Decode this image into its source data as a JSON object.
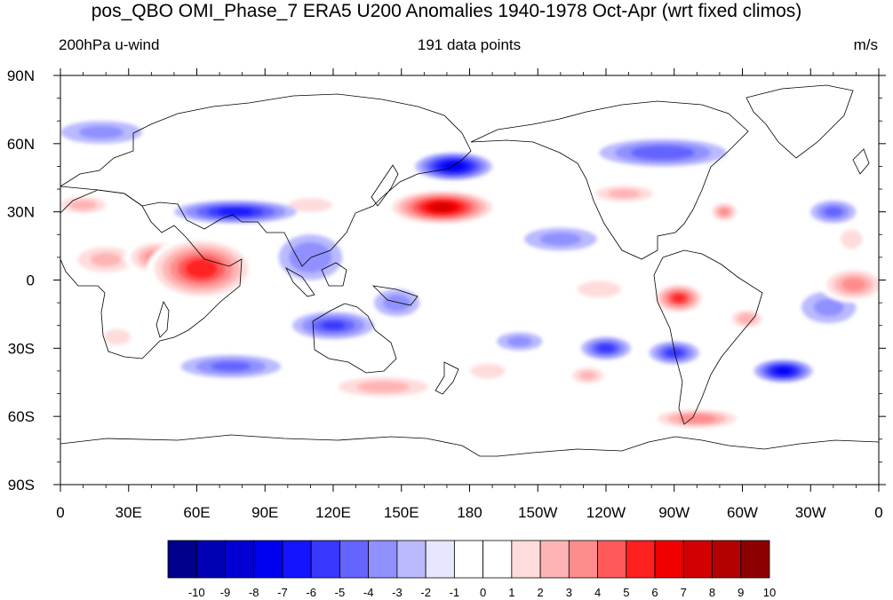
{
  "title": "pos_QBO OMI_Phase_7 ERA5 U200 Anomalies 1940-1978 Oct-Apr (wrt fixed climos)",
  "left_subtitle": "200hPa u-wind",
  "center_subtitle": "191 data points",
  "right_subtitle": "m/s",
  "chart_data": {
    "type": "heatmap",
    "projection": "cylindrical-equidistant",
    "lon_range": [
      0,
      360
    ],
    "lat_range": [
      -90,
      90
    ],
    "x_ticks": [
      {
        "lon": 0,
        "label": "0"
      },
      {
        "lon": 30,
        "label": "30E"
      },
      {
        "lon": 60,
        "label": "60E"
      },
      {
        "lon": 90,
        "label": "90E"
      },
      {
        "lon": 120,
        "label": "120E"
      },
      {
        "lon": 150,
        "label": "150E"
      },
      {
        "lon": 180,
        "label": "180"
      },
      {
        "lon": 210,
        "label": "150W"
      },
      {
        "lon": 240,
        "label": "120W"
      },
      {
        "lon": 270,
        "label": "90W"
      },
      {
        "lon": 300,
        "label": "60W"
      },
      {
        "lon": 330,
        "label": "30W"
      },
      {
        "lon": 360,
        "label": "0"
      }
    ],
    "y_ticks": [
      {
        "lat": 90,
        "label": "90N"
      },
      {
        "lat": 60,
        "label": "60N"
      },
      {
        "lat": 30,
        "label": "30N"
      },
      {
        "lat": 0,
        "label": "0"
      },
      {
        "lat": -30,
        "label": "30S"
      },
      {
        "lat": -60,
        "label": "60S"
      },
      {
        "lat": -90,
        "label": "90S"
      }
    ],
    "colorbar": {
      "labels": [
        "-10",
        "-9",
        "-8",
        "-7",
        "-6",
        "-5",
        "-4",
        "-3",
        "-2",
        "-1",
        "0",
        "1",
        "2",
        "3",
        "4",
        "5",
        "6",
        "7",
        "8",
        "9",
        "10"
      ],
      "colors": [
        "#00008c",
        "#0000b4",
        "#0000d2",
        "#0000f0",
        "#1414ff",
        "#3838ff",
        "#6464ff",
        "#9090ff",
        "#babaff",
        "#e6e6ff",
        "#ffffff",
        "#ffffff",
        "#ffdcdc",
        "#ffb4b4",
        "#ff8c8c",
        "#ff5a5a",
        "#ff2020",
        "#f00000",
        "#d20000",
        "#b40000",
        "#8c0000"
      ]
    },
    "anomalies": [
      {
        "lon": 168,
        "lat": 32,
        "value": 8.5,
        "rx": 25,
        "ry": 8
      },
      {
        "lon": 62,
        "lat": 5,
        "value": 7,
        "rx": 24,
        "ry": 14
      },
      {
        "lon": 42,
        "lat": 10,
        "value": 4.5,
        "rx": 14,
        "ry": 8
      },
      {
        "lon": 20,
        "lat": 9,
        "value": 3.2,
        "rx": 18,
        "ry": 8
      },
      {
        "lon": 10,
        "lat": 33,
        "value": 3.5,
        "rx": 14,
        "ry": 5
      },
      {
        "lon": 110,
        "lat": 33,
        "value": 2.5,
        "rx": 16,
        "ry": 5
      },
      {
        "lon": 248,
        "lat": 38,
        "value": 3.3,
        "rx": 18,
        "ry": 5
      },
      {
        "lon": 292,
        "lat": 30,
        "value": 4.3,
        "rx": 7,
        "ry": 5
      },
      {
        "lon": 272,
        "lat": -8,
        "value": 6.5,
        "rx": 12,
        "ry": 7
      },
      {
        "lon": 237,
        "lat": -4,
        "value": 2.5,
        "rx": 16,
        "ry": 6
      },
      {
        "lon": 302,
        "lat": -17,
        "value": 3.8,
        "rx": 9,
        "ry": 5
      },
      {
        "lon": 349,
        "lat": -2,
        "value": 4.6,
        "rx": 15,
        "ry": 8
      },
      {
        "lon": 348,
        "lat": 18,
        "value": 2.5,
        "rx": 8,
        "ry": 7
      },
      {
        "lon": 142,
        "lat": -47,
        "value": 3.4,
        "rx": 28,
        "ry": 6
      },
      {
        "lon": 188,
        "lat": -40,
        "value": 2.2,
        "rx": 14,
        "ry": 6
      },
      {
        "lon": 232,
        "lat": -42,
        "value": 3.2,
        "rx": 10,
        "ry": 5
      },
      {
        "lon": 280,
        "lat": -61,
        "value": 4.8,
        "rx": 22,
        "ry": 5
      },
      {
        "lon": 25,
        "lat": -25,
        "value": 2.4,
        "rx": 10,
        "ry": 6
      },
      {
        "lon": 173,
        "lat": 50,
        "value": -7,
        "rx": 17,
        "ry": 6
      },
      {
        "lon": 77,
        "lat": 30,
        "value": -5.5,
        "rx": 27,
        "ry": 5
      },
      {
        "lon": 120,
        "lat": -20,
        "value": -4.2,
        "rx": 18,
        "ry": 6
      },
      {
        "lon": 110,
        "lat": 10,
        "value": -3,
        "rx": 14,
        "ry": 10
      },
      {
        "lon": 265,
        "lat": 56,
        "value": -4,
        "rx": 28,
        "ry": 6
      },
      {
        "lon": 318,
        "lat": -40,
        "value": -6.5,
        "rx": 13,
        "ry": 5
      },
      {
        "lon": 240,
        "lat": -30,
        "value": -4.6,
        "rx": 11,
        "ry": 5
      },
      {
        "lon": 270,
        "lat": -32,
        "value": -4.6,
        "rx": 11,
        "ry": 5
      },
      {
        "lon": 340,
        "lat": 30,
        "value": -3.4,
        "rx": 10,
        "ry": 5
      },
      {
        "lon": 220,
        "lat": 18,
        "value": -2.3,
        "rx": 16,
        "ry": 5
      },
      {
        "lon": 75,
        "lat": -38,
        "value": -3.3,
        "rx": 22,
        "ry": 5
      },
      {
        "lon": 18,
        "lat": 65,
        "value": -2.2,
        "rx": 18,
        "ry": 5
      },
      {
        "lon": 338,
        "lat": -12,
        "value": -2.2,
        "rx": 12,
        "ry": 7
      },
      {
        "lon": 148,
        "lat": -10,
        "value": -2.5,
        "rx": 10,
        "ry": 6
      },
      {
        "lon": 202,
        "lat": -27,
        "value": -2.2,
        "rx": 10,
        "ry": 4
      }
    ]
  }
}
